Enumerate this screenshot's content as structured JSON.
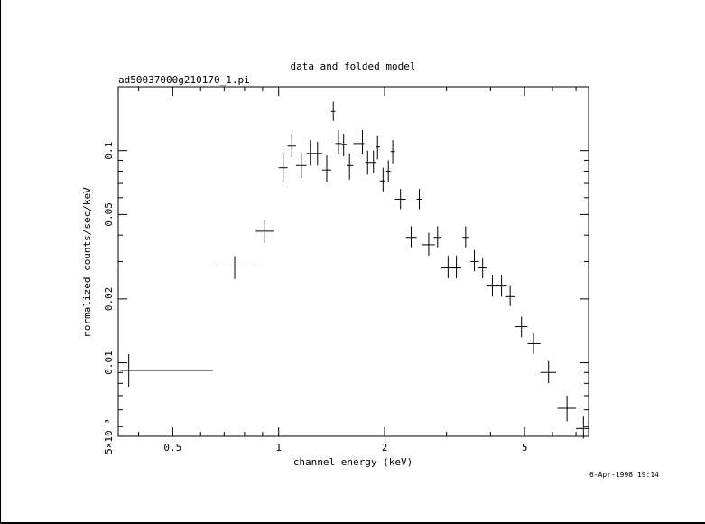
{
  "chart_data": {
    "type": "scatter",
    "title": "data and folded model",
    "subtitle": "ad50037000g210170_1.pi",
    "xlabel": "channel energy (keV)",
    "ylabel": "normalized counts/sec/keV",
    "timestamp": "6-Apr-1998 19:14",
    "x_scale": "log",
    "y_scale": "log",
    "xlim": [
      0.35,
      7.6
    ],
    "ylim": [
      0.0045,
      0.2
    ],
    "x_ticks": [
      {
        "value": 0.5,
        "label": "0.5"
      },
      {
        "value": 1,
        "label": "1"
      },
      {
        "value": 2,
        "label": "2"
      },
      {
        "value": 5,
        "label": "5"
      }
    ],
    "y_ticks": [
      {
        "value": 0.0045,
        "label": "5×10⁻³"
      },
      {
        "value": 0.01,
        "label": "0.01"
      },
      {
        "value": 0.02,
        "label": "0.02"
      },
      {
        "value": 0.05,
        "label": "0.05"
      },
      {
        "value": 0.1,
        "label": "0.1"
      }
    ],
    "grid": false,
    "legend": "none",
    "series": [
      {
        "points": [
          {
            "x": 0.375,
            "y": 0.0092,
            "xlo": 0.355,
            "xhi": 0.65,
            "ylo": 0.0077,
            "yhi": 0.011
          },
          {
            "x": 0.75,
            "y": 0.0283,
            "xlo": 0.66,
            "xhi": 0.86,
            "ylo": 0.0248,
            "yhi": 0.0318
          },
          {
            "x": 0.91,
            "y": 0.0417,
            "xlo": 0.86,
            "xhi": 0.97,
            "ylo": 0.0367,
            "yhi": 0.047
          },
          {
            "x": 1.03,
            "y": 0.083,
            "xlo": 1.0,
            "xhi": 1.06,
            "ylo": 0.071,
            "yhi": 0.098
          },
          {
            "x": 1.09,
            "y": 0.105,
            "xlo": 1.06,
            "xhi": 1.12,
            "ylo": 0.093,
            "yhi": 0.12
          },
          {
            "x": 1.16,
            "y": 0.085,
            "xlo": 1.12,
            "xhi": 1.2,
            "ylo": 0.074,
            "yhi": 0.098
          },
          {
            "x": 1.23,
            "y": 0.097,
            "xlo": 1.2,
            "xhi": 1.26,
            "ylo": 0.085,
            "yhi": 0.112
          },
          {
            "x": 1.29,
            "y": 0.097,
            "xlo": 1.26,
            "xhi": 1.33,
            "ylo": 0.085,
            "yhi": 0.11
          },
          {
            "x": 1.37,
            "y": 0.081,
            "xlo": 1.33,
            "xhi": 1.41,
            "ylo": 0.071,
            "yhi": 0.095
          },
          {
            "x": 1.43,
            "y": 0.153,
            "xlo": 1.41,
            "xhi": 1.45,
            "ylo": 0.138,
            "yhi": 0.17
          },
          {
            "x": 1.48,
            "y": 0.108,
            "xlo": 1.45,
            "xhi": 1.51,
            "ylo": 0.096,
            "yhi": 0.125
          },
          {
            "x": 1.53,
            "y": 0.107,
            "xlo": 1.51,
            "xhi": 1.56,
            "ylo": 0.094,
            "yhi": 0.12
          },
          {
            "x": 1.59,
            "y": 0.085,
            "xlo": 1.56,
            "xhi": 1.63,
            "ylo": 0.073,
            "yhi": 0.097
          },
          {
            "x": 1.67,
            "y": 0.108,
            "xlo": 1.63,
            "xhi": 1.71,
            "ylo": 0.094,
            "yhi": 0.125
          },
          {
            "x": 1.73,
            "y": 0.108,
            "xlo": 1.71,
            "xhi": 1.75,
            "ylo": 0.096,
            "yhi": 0.125
          },
          {
            "x": 1.79,
            "y": 0.088,
            "xlo": 1.76,
            "xhi": 1.82,
            "ylo": 0.077,
            "yhi": 0.1
          },
          {
            "x": 1.86,
            "y": 0.088,
            "xlo": 1.82,
            "xhi": 1.89,
            "ylo": 0.078,
            "yhi": 0.1
          },
          {
            "x": 1.91,
            "y": 0.104,
            "xlo": 1.89,
            "xhi": 1.94,
            "ylo": 0.091,
            "yhi": 0.118
          },
          {
            "x": 1.98,
            "y": 0.072,
            "xlo": 1.94,
            "xhi": 2.01,
            "ylo": 0.064,
            "yhi": 0.083
          },
          {
            "x": 2.05,
            "y": 0.08,
            "xlo": 2.02,
            "xhi": 2.08,
            "ylo": 0.071,
            "yhi": 0.09
          },
          {
            "x": 2.11,
            "y": 0.099,
            "xlo": 2.08,
            "xhi": 2.14,
            "ylo": 0.087,
            "yhi": 0.112
          },
          {
            "x": 2.22,
            "y": 0.059,
            "xlo": 2.14,
            "xhi": 2.3,
            "ylo": 0.053,
            "yhi": 0.066
          },
          {
            "x": 2.38,
            "y": 0.039,
            "xlo": 2.3,
            "xhi": 2.47,
            "ylo": 0.035,
            "yhi": 0.044
          },
          {
            "x": 2.51,
            "y": 0.059,
            "xlo": 2.47,
            "xhi": 2.55,
            "ylo": 0.053,
            "yhi": 0.066
          },
          {
            "x": 2.67,
            "y": 0.036,
            "xlo": 2.56,
            "xhi": 2.78,
            "ylo": 0.032,
            "yhi": 0.041
          },
          {
            "x": 2.83,
            "y": 0.039,
            "xlo": 2.76,
            "xhi": 2.9,
            "ylo": 0.035,
            "yhi": 0.044
          },
          {
            "x": 3.03,
            "y": 0.028,
            "xlo": 2.9,
            "xhi": 3.17,
            "ylo": 0.025,
            "yhi": 0.032
          },
          {
            "x": 3.2,
            "y": 0.028,
            "xlo": 3.1,
            "xhi": 3.3,
            "ylo": 0.025,
            "yhi": 0.032
          },
          {
            "x": 3.4,
            "y": 0.039,
            "xlo": 3.33,
            "xhi": 3.48,
            "ylo": 0.035,
            "yhi": 0.044
          },
          {
            "x": 3.6,
            "y": 0.03,
            "xlo": 3.51,
            "xhi": 3.7,
            "ylo": 0.027,
            "yhi": 0.034
          },
          {
            "x": 3.8,
            "y": 0.028,
            "xlo": 3.7,
            "xhi": 3.9,
            "ylo": 0.025,
            "yhi": 0.031
          },
          {
            "x": 4.05,
            "y": 0.023,
            "xlo": 3.9,
            "xhi": 4.2,
            "ylo": 0.0205,
            "yhi": 0.026
          },
          {
            "x": 4.3,
            "y": 0.023,
            "xlo": 4.15,
            "xhi": 4.45,
            "ylo": 0.0205,
            "yhi": 0.026
          },
          {
            "x": 4.55,
            "y": 0.0205,
            "xlo": 4.4,
            "xhi": 4.7,
            "ylo": 0.0185,
            "yhi": 0.023
          },
          {
            "x": 4.9,
            "y": 0.0148,
            "xlo": 4.7,
            "xhi": 5.1,
            "ylo": 0.0132,
            "yhi": 0.0165
          },
          {
            "x": 5.3,
            "y": 0.0123,
            "xlo": 5.1,
            "xhi": 5.55,
            "ylo": 0.011,
            "yhi": 0.0138
          },
          {
            "x": 5.85,
            "y": 0.009,
            "xlo": 5.55,
            "xhi": 6.15,
            "ylo": 0.008,
            "yhi": 0.0102
          },
          {
            "x": 6.6,
            "y": 0.0061,
            "xlo": 6.2,
            "xhi": 7.0,
            "ylo": 0.0053,
            "yhi": 0.007
          },
          {
            "x": 7.35,
            "y": 0.0049,
            "xlo": 7.0,
            "xhi": 7.6,
            "ylo": 0.0044,
            "yhi": 0.0056
          }
        ]
      }
    ]
  }
}
